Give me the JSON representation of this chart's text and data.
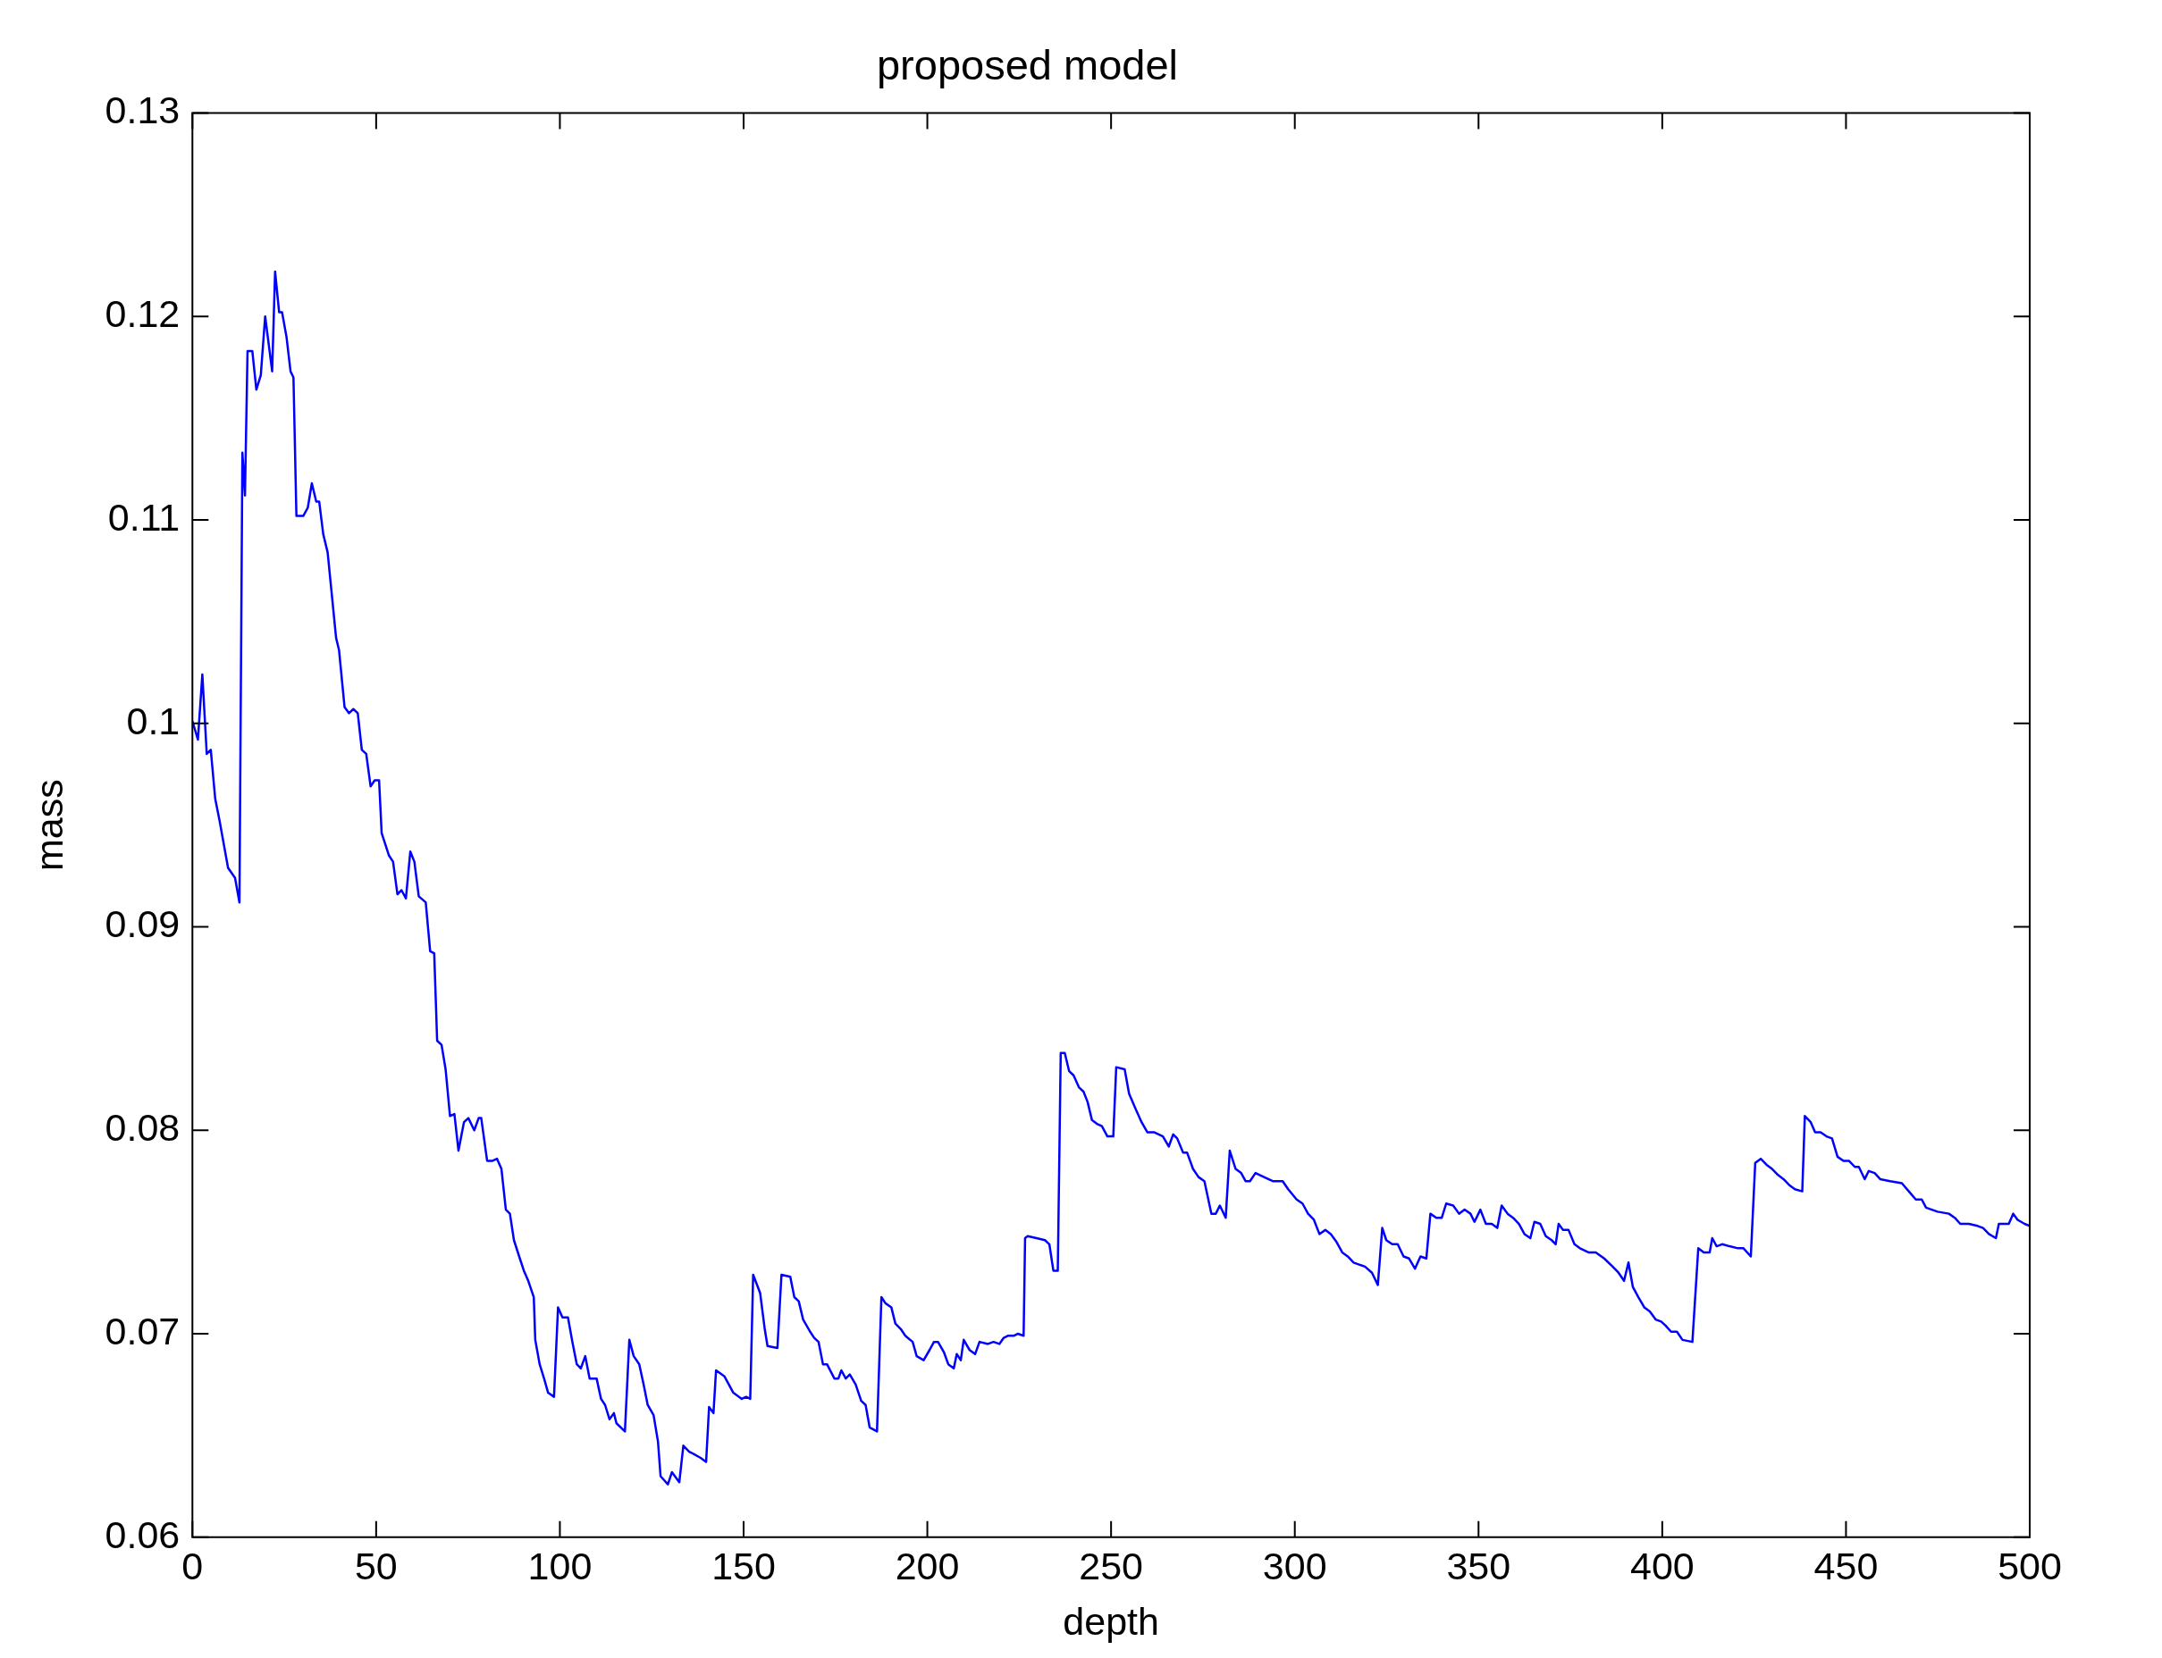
{
  "chart_data": {
    "type": "line",
    "title": "proposed model",
    "xlabel": "depth",
    "ylabel": "mass",
    "xlim": [
      0,
      500
    ],
    "ylim": [
      0.06,
      0.13
    ],
    "xticks": [
      0,
      50,
      100,
      150,
      200,
      250,
      300,
      350,
      400,
      450,
      500
    ],
    "yticks": [
      0.06,
      0.07,
      0.08,
      0.09,
      0.1,
      0.11,
      0.12,
      0.13
    ],
    "grid": false,
    "legend": false,
    "marker": "none",
    "line_style": "solid",
    "series": [
      {
        "color": "#0000ff",
        "x": [
          0,
          1.5,
          2.7,
          3.9,
          5,
          6.2,
          7.4,
          9.7,
          11.6,
          12.8,
          13.6,
          14.3,
          15,
          16.3,
          17.4,
          18.6,
          19.8,
          21.7,
          22.5,
          23.6,
          24.4,
          25.6,
          26.7,
          27.5,
          28.3,
          30.2,
          31.4,
          32.5,
          33.7,
          34.5,
          35.6,
          36.8,
          39.1,
          39.9,
          41.4,
          42.6,
          43.8,
          45,
          46.1,
          47.3,
          48.5,
          49.6,
          50.8,
          51.5,
          53.5,
          54.6,
          55.8,
          56.9,
          58.1,
          59.3,
          60.4,
          61.6,
          63.5,
          64.7,
          65.8,
          66.6,
          67.8,
          68.9,
          70.1,
          71.3,
          72.4,
          73.9,
          75.1,
          76.7,
          77.9,
          78.6,
          80.2,
          81.7,
          82.9,
          84.1,
          85.3,
          86.4,
          87.5,
          89.1,
          90.2,
          91.4,
          92.9,
          93.3,
          94.5,
          95.7,
          96.8,
          98.4,
          99.5,
          100.7,
          102.2,
          103.4,
          104.6,
          105.7,
          106.9,
          108.1,
          110,
          111.2,
          112.3,
          113.5,
          114.7,
          115.4,
          117.7,
          118.9,
          120.1,
          121.6,
          122.8,
          123.9,
          125.5,
          126.7,
          127.4,
          129.4,
          130.5,
          132.5,
          133.6,
          135.2,
          136.3,
          138.3,
          139.8,
          140.6,
          141.8,
          142.5,
          144.8,
          147.2,
          149.5,
          150.7,
          151.8,
          152.6,
          154.5,
          155.7,
          156.5,
          159.2,
          160.3,
          162.7,
          163.8,
          165,
          166.2,
          168.1,
          169.2,
          170.4,
          171.6,
          172.7,
          174.7,
          175.8,
          176.6,
          177.8,
          178.9,
          180.5,
          182,
          183.2,
          184.3,
          186.3,
          187.5,
          188.6,
          190.2,
          191.3,
          192.9,
          194,
          196,
          197.1,
          199,
          200.6,
          201.8,
          202.9,
          204.5,
          205.7,
          207.2,
          208,
          209.1,
          209.9,
          211.5,
          213,
          214.2,
          216.5,
          218,
          219.6,
          220.8,
          221.9,
          223.5,
          224.6,
          226.2,
          226.6,
          227.3,
          229.7,
          232,
          233.2,
          234.3,
          235.5,
          236.3,
          237.4,
          238.6,
          239.8,
          241.3,
          242.5,
          243.6,
          244.8,
          246.3,
          247.5,
          249,
          250.6,
          251.4,
          253.7,
          254.9,
          256.8,
          258.3,
          259.9,
          261.8,
          264.1,
          265.7,
          266.9,
          268,
          269.6,
          270.7,
          272.3,
          273.8,
          275.4,
          277.3,
          278.5,
          279.6,
          281.2,
          282.3,
          283.9,
          285.4,
          286.6,
          287.8,
          289.3,
          291.6,
          294,
          296.7,
          298.2,
          300.5,
          302.1,
          303.6,
          305.2,
          306.7,
          308.3,
          309.8,
          311.4,
          312.9,
          314.4,
          316,
          317.5,
          319.1,
          321,
          322.6,
          323.8,
          324.9,
          326.5,
          328,
          329.6,
          331.1,
          332.7,
          334.2,
          335.8,
          336.9,
          338.5,
          340,
          341.2,
          343.1,
          344.7,
          346.2,
          347.8,
          348.9,
          350.5,
          352,
          353.6,
          355.1,
          356.3,
          357.9,
          359.4,
          361,
          362.5,
          364.1,
          365.2,
          366.8,
          368.3,
          369.9,
          371,
          371.8,
          373,
          374.5,
          376.1,
          377.6,
          379.9,
          381.9,
          384.2,
          386.5,
          388.1,
          389.6,
          390.8,
          392,
          393.5,
          395.1,
          396.6,
          398.2,
          399.7,
          400.9,
          402.4,
          404,
          405.5,
          408.2,
          409.8,
          411.3,
          412.9,
          413.6,
          414.8,
          416.3,
          418.3,
          420.6,
          422.1,
          424.1,
          425.3,
          426.8,
          428.4,
          429.9,
          431.5,
          433,
          434.6,
          436.1,
          438.1,
          438.8,
          440.4,
          441.6,
          443.1,
          444.7,
          446.2,
          447.7,
          449.3,
          450.8,
          452.4,
          453.5,
          455.1,
          456.2,
          457.8,
          459.3,
          462,
          465.2,
          467.1,
          469,
          470.6,
          471.8,
          474.9,
          478,
          479.6,
          481.1,
          483.4,
          485.8,
          487.3,
          488.9,
          490.8,
          491.6,
          493.5,
          494.3,
          495.5,
          496.7,
          498.6,
          500
        ],
        "values": [
          0.1001,
          0.0992,
          0.1024,
          0.0985,
          0.0987,
          0.0963,
          0.0952,
          0.0929,
          0.0924,
          0.0912,
          0.1133,
          0.1112,
          0.1183,
          0.1183,
          0.1164,
          0.1171,
          0.12,
          0.1173,
          0.1222,
          0.1202,
          0.1202,
          0.119,
          0.1173,
          0.117,
          0.1102,
          0.1102,
          0.1106,
          0.1118,
          0.1109,
          0.1109,
          0.1093,
          0.1084,
          0.1042,
          0.1036,
          0.1008,
          0.1005,
          0.1007,
          0.1005,
          0.0987,
          0.0985,
          0.0969,
          0.0972,
          0.0972,
          0.0946,
          0.0935,
          0.0932,
          0.0916,
          0.0918,
          0.0914,
          0.0937,
          0.0932,
          0.0915,
          0.0912,
          0.0888,
          0.0887,
          0.0844,
          0.0842,
          0.083,
          0.0807,
          0.0808,
          0.079,
          0.0804,
          0.0806,
          0.08,
          0.0806,
          0.0806,
          0.0785,
          0.0785,
          0.0786,
          0.0781,
          0.0761,
          0.0759,
          0.0746,
          0.0737,
          0.0731,
          0.0726,
          0.0718,
          0.0697,
          0.0685,
          0.0678,
          0.0671,
          0.0669,
          0.0713,
          0.0708,
          0.0708,
          0.0696,
          0.0685,
          0.0683,
          0.0689,
          0.0678,
          0.0678,
          0.0668,
          0.0665,
          0.0658,
          0.0661,
          0.0656,
          0.0652,
          0.0697,
          0.0689,
          0.0685,
          0.0675,
          0.0665,
          0.066,
          0.0647,
          0.063,
          0.0626,
          0.0632,
          0.0627,
          0.0645,
          0.0642,
          0.0641,
          0.0639,
          0.0637,
          0.0664,
          0.0661,
          0.0682,
          0.0679,
          0.0671,
          0.0668,
          0.0669,
          0.0668,
          0.0729,
          0.072,
          0.0703,
          0.0694,
          0.0693,
          0.0729,
          0.0728,
          0.0718,
          0.0716,
          0.0707,
          0.0701,
          0.0698,
          0.0696,
          0.0685,
          0.0685,
          0.0678,
          0.0678,
          0.0682,
          0.0678,
          0.068,
          0.0675,
          0.0667,
          0.0665,
          0.0654,
          0.0652,
          0.0718,
          0.0715,
          0.0713,
          0.0705,
          0.0702,
          0.0699,
          0.0696,
          0.0689,
          0.0687,
          0.0692,
          0.0696,
          0.0696,
          0.0691,
          0.0685,
          0.0683,
          0.069,
          0.0687,
          0.0697,
          0.0692,
          0.069,
          0.0696,
          0.0695,
          0.0696,
          0.0695,
          0.0698,
          0.0699,
          0.0699,
          0.07,
          0.0699,
          0.0747,
          0.0748,
          0.0747,
          0.0746,
          0.0744,
          0.0731,
          0.0731,
          0.0838,
          0.0838,
          0.0829,
          0.0827,
          0.0821,
          0.0819,
          0.0814,
          0.0805,
          0.0803,
          0.0802,
          0.0797,
          0.0797,
          0.0831,
          0.083,
          0.0818,
          0.081,
          0.0804,
          0.0799,
          0.0799,
          0.0797,
          0.0792,
          0.0798,
          0.0796,
          0.0789,
          0.0789,
          0.0781,
          0.0777,
          0.0775,
          0.0759,
          0.0759,
          0.0763,
          0.0757,
          0.079,
          0.0781,
          0.0779,
          0.0775,
          0.0775,
          0.0779,
          0.0777,
          0.0775,
          0.0775,
          0.0771,
          0.0766,
          0.0764,
          0.0759,
          0.0756,
          0.0749,
          0.0751,
          0.0749,
          0.0745,
          0.074,
          0.0738,
          0.0735,
          0.0734,
          0.0733,
          0.073,
          0.0724,
          0.0752,
          0.0746,
          0.0744,
          0.0744,
          0.0738,
          0.0737,
          0.0732,
          0.0738,
          0.0737,
          0.0759,
          0.0757,
          0.0757,
          0.0764,
          0.0763,
          0.0759,
          0.0761,
          0.0759,
          0.0755,
          0.0761,
          0.0754,
          0.0754,
          0.0752,
          0.0763,
          0.0759,
          0.0757,
          0.0754,
          0.0749,
          0.0747,
          0.0755,
          0.0754,
          0.0748,
          0.0746,
          0.0744,
          0.0754,
          0.0751,
          0.0751,
          0.0744,
          0.0742,
          0.074,
          0.074,
          0.0737,
          0.0733,
          0.073,
          0.0726,
          0.0735,
          0.0723,
          0.0718,
          0.0713,
          0.0711,
          0.0707,
          0.0706,
          0.0704,
          0.0701,
          0.0701,
          0.0697,
          0.0696,
          0.0742,
          0.074,
          0.074,
          0.0747,
          0.0743,
          0.0744,
          0.0743,
          0.0742,
          0.0742,
          0.0738,
          0.0784,
          0.0786,
          0.0783,
          0.0781,
          0.0778,
          0.0776,
          0.0773,
          0.0771,
          0.077,
          0.0807,
          0.0804,
          0.0799,
          0.0799,
          0.0797,
          0.0796,
          0.0787,
          0.0785,
          0.0785,
          0.0782,
          0.0782,
          0.0776,
          0.078,
          0.0779,
          0.0776,
          0.0775,
          0.0774,
          0.077,
          0.0766,
          0.0766,
          0.0762,
          0.076,
          0.0759,
          0.0757,
          0.0754,
          0.0754,
          0.0753,
          0.0752,
          0.0749,
          0.0747,
          0.0754,
          0.0754,
          0.0754,
          0.0759,
          0.0756,
          0.0754,
          0.0753
        ]
      }
    ]
  }
}
